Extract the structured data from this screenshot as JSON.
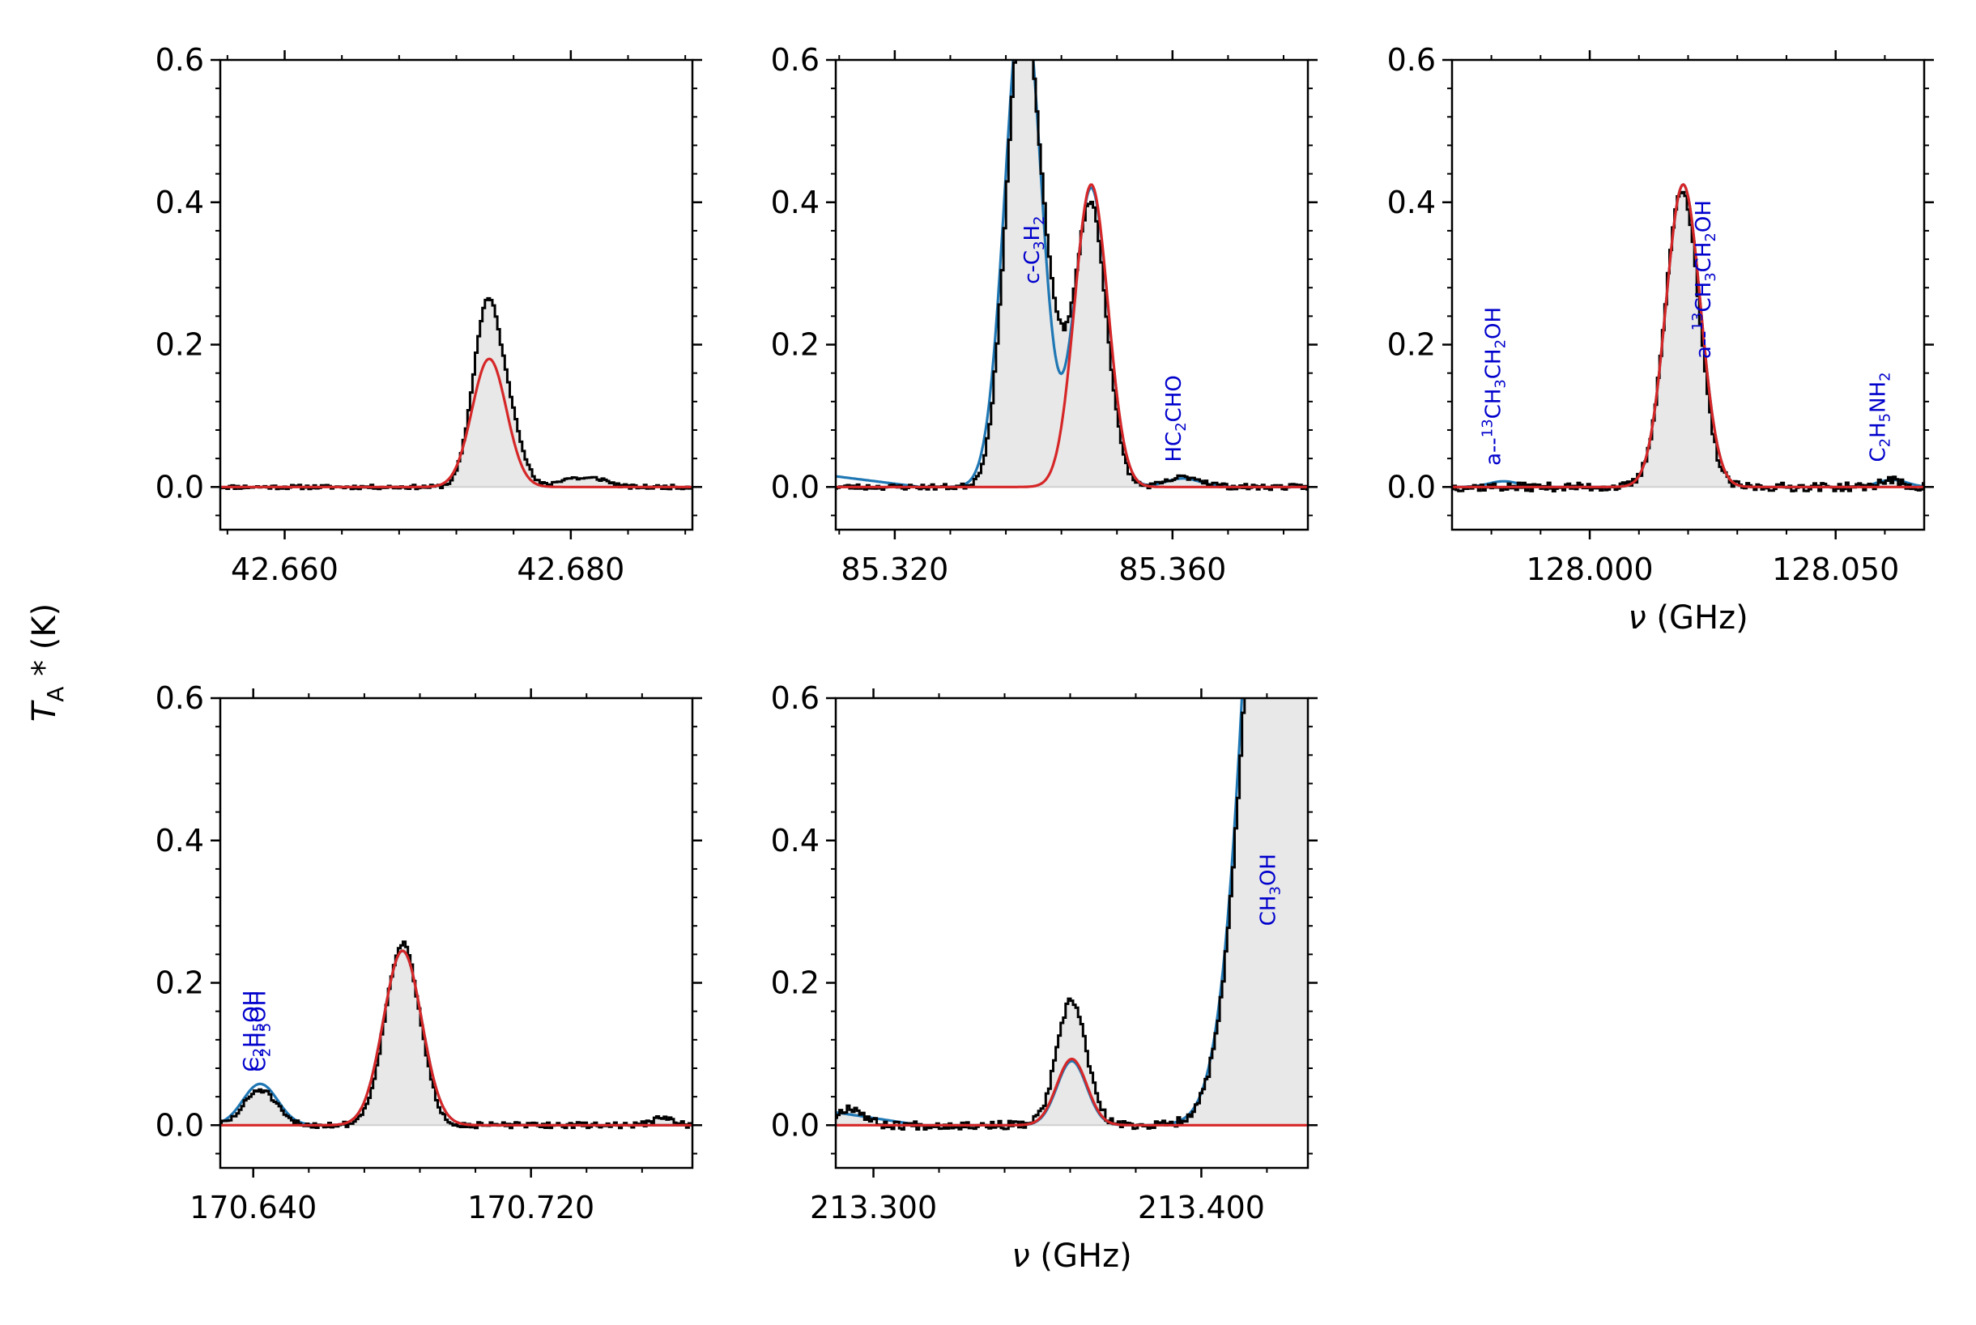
{
  "figure": {
    "ylabel": "T_A * (K)",
    "ylabel_main": "T",
    "ylabel_sub": "A",
    "ylabel_rest": " * (K)",
    "colors": {
      "observed": "#000000",
      "fill": "#e8e8e8",
      "total_model": "#1f77b4",
      "target_model": "#d62728",
      "annotation": "#0000cc"
    }
  },
  "chart_data": [
    {
      "type": "line",
      "panel": "42.67 GHz",
      "xlim": [
        42.6555,
        42.6885
      ],
      "ylim": [
        -0.06,
        0.6
      ],
      "xticks": [
        42.66,
        42.68
      ],
      "xtick_labels": [
        "42.660",
        "42.680"
      ],
      "yticks": [
        0.0,
        0.2,
        0.4,
        0.6
      ],
      "ytick_labels": [
        "0.0",
        "0.2",
        "0.4",
        "0.6"
      ],
      "xlabel": "",
      "observed": {
        "baseline": 0.0,
        "noise": 0.003,
        "seed": 11,
        "components": [
          {
            "center": 42.6742,
            "amp": 0.26,
            "width": 0.001
          },
          {
            "center": 42.676,
            "amp": 0.06,
            "width": 0.0008
          },
          {
            "center": 42.68,
            "amp": 0.012,
            "width": 0.001
          },
          {
            "center": 42.682,
            "amp": 0.01,
            "width": 0.0008
          }
        ]
      },
      "total_model": null,
      "target_model": {
        "components": [
          {
            "center": 42.6743,
            "amp": 0.18,
            "width": 0.0012
          }
        ]
      },
      "labels": []
    },
    {
      "type": "line",
      "panel": "85.34 GHz",
      "xlim": [
        85.3115,
        85.3795
      ],
      "ylim": [
        -0.06,
        0.6
      ],
      "xticks": [
        85.32,
        85.36
      ],
      "xtick_labels": [
        "85.320",
        "85.360"
      ],
      "yticks": [
        0.0,
        0.2,
        0.4,
        0.6
      ],
      "ytick_labels": [
        "0.0",
        "0.2",
        "0.4",
        "0.6"
      ],
      "xlabel": "",
      "observed": {
        "baseline": 0.0,
        "noise": 0.004,
        "seed": 23,
        "components": [
          {
            "center": 85.3385,
            "amp": 0.68,
            "width": 0.0024
          },
          {
            "center": 85.343,
            "amp": 0.12,
            "width": 0.0018
          },
          {
            "center": 85.3482,
            "amp": 0.4,
            "width": 0.0023
          },
          {
            "center": 85.362,
            "amp": 0.014,
            "width": 0.0025
          }
        ]
      },
      "total_model": {
        "baseline_left": 0.015,
        "components": [
          {
            "center": 85.3385,
            "amp": 0.7,
            "width": 0.0026
          },
          {
            "center": 85.3483,
            "amp": 0.42,
            "width": 0.0024
          },
          {
            "center": 85.3615,
            "amp": 0.012,
            "width": 0.0025
          }
        ]
      },
      "target_model": {
        "components": [
          {
            "center": 85.3483,
            "amp": 0.425,
            "width": 0.0024
          }
        ]
      },
      "labels": [
        {
          "text": "c-C3H2",
          "main": "c-C",
          "sub1": "3",
          "mid": "H",
          "sub2": "2",
          "x": 85.3408,
          "y": 0.285
        },
        {
          "text": "HC2CHO",
          "main": "HC",
          "sub1": "2",
          "mid": "CHO",
          "sub2": "",
          "x": 85.3612,
          "y": 0.035
        }
      ]
    },
    {
      "type": "line",
      "panel": "128.02 GHz",
      "xlim": [
        127.972,
        128.068
      ],
      "ylim": [
        -0.06,
        0.6
      ],
      "xticks": [
        128.0,
        128.05
      ],
      "xtick_labels": [
        "128.000",
        "128.050"
      ],
      "yticks": [
        0.0,
        0.2,
        0.4,
        0.6
      ],
      "ytick_labels": [
        "0.0",
        "0.2",
        "0.4",
        "0.6"
      ],
      "xlabel": "ν (GHz)",
      "observed": {
        "baseline": 0.0,
        "noise": 0.006,
        "seed": 37,
        "components": [
          {
            "center": 128.0188,
            "amp": 0.42,
            "width": 0.0034
          },
          {
            "center": 128.061,
            "amp": 0.01,
            "width": 0.002
          }
        ]
      },
      "total_model": {
        "baseline_left": 0.0,
        "components": [
          {
            "center": 128.019,
            "amp": 0.425,
            "width": 0.0035
          },
          {
            "center": 127.9825,
            "amp": 0.008,
            "width": 0.003
          },
          {
            "center": 128.0615,
            "amp": 0.01,
            "width": 0.003
          }
        ]
      },
      "target_model": {
        "components": [
          {
            "center": 128.019,
            "amp": 0.425,
            "width": 0.0035
          }
        ]
      },
      "labels": [
        {
          "text": "a--13CH3CH2OH",
          "main": "a--",
          "sup": "13",
          "parts": [
            "CH",
            "3",
            "CH",
            "2",
            "OH"
          ],
          "x": 127.9818,
          "y": 0.03
        },
        {
          "text": "a--13CH3CH2OH",
          "main": "a--",
          "sup": "13",
          "parts": [
            "CH",
            "3",
            "CH",
            "2",
            "OH"
          ],
          "x": 128.0245,
          "y": 0.18
        },
        {
          "text": "C2H5NH2",
          "main": "C",
          "sub1": "2",
          "mid": "H",
          "sub2": "5",
          "tail": "NH",
          "sub3": "2",
          "x": 128.06,
          "y": 0.035
        }
      ]
    },
    {
      "type": "line",
      "panel": "170.68 GHz",
      "xlim": [
        170.6305,
        170.7665
      ],
      "ylim": [
        -0.06,
        0.6
      ],
      "xticks": [
        170.64,
        170.72
      ],
      "xtick_labels": [
        "170.640",
        "170.720"
      ],
      "yticks": [
        0.0,
        0.2,
        0.4,
        0.6
      ],
      "ytick_labels": [
        "0.0",
        "0.2",
        "0.4",
        "0.6"
      ],
      "xlabel": "",
      "observed": {
        "baseline": 0.0,
        "noise": 0.004,
        "seed": 51,
        "components": [
          {
            "center": 170.642,
            "amp": 0.05,
            "width": 0.0045
          },
          {
            "center": 170.683,
            "amp": 0.255,
            "width": 0.005
          },
          {
            "center": 170.758,
            "amp": 0.01,
            "width": 0.003
          }
        ]
      },
      "total_model": {
        "baseline_left": 0.0,
        "components": [
          {
            "center": 170.642,
            "amp": 0.058,
            "width": 0.005
          },
          {
            "center": 170.683,
            "amp": 0.245,
            "width": 0.0055
          }
        ]
      },
      "target_model": {
        "components": [
          {
            "center": 170.683,
            "amp": 0.245,
            "width": 0.0055
          }
        ]
      },
      "labels": [
        {
          "text": "C2H5OH",
          "main": "C",
          "sub1": "2",
          "mid": "H",
          "sub2": "5",
          "tail": "OH",
          "x": 170.6415,
          "y": 0.075
        },
        {
          "text": "C2H5OH",
          "main": "C",
          "sub1": "2",
          "mid": "H",
          "sub2": "5",
          "tail": "OH",
          "x": 170.6435,
          "y": 0.075
        }
      ]
    },
    {
      "type": "line",
      "panel": "213.36 GHz",
      "xlim": [
        213.2885,
        213.4325
      ],
      "ylim": [
        -0.06,
        0.6
      ],
      "xticks": [
        213.3,
        213.4
      ],
      "xtick_labels": [
        "213.300",
        "213.400"
      ],
      "yticks": [
        0.0,
        0.2,
        0.4,
        0.6
      ],
      "ytick_labels": [
        "0.0",
        "0.2",
        "0.4",
        "0.6"
      ],
      "xlabel": "ν (GHz)",
      "observed": {
        "baseline": 0.0,
        "noise": 0.006,
        "seed": 67,
        "components": [
          {
            "center": 213.293,
            "amp": 0.025,
            "width": 0.004
          },
          {
            "center": 213.3605,
            "amp": 0.175,
            "width": 0.0045
          },
          {
            "center": 213.427,
            "amp": 1.6,
            "width": 0.01
          }
        ]
      },
      "total_model": {
        "baseline_left": 0.018,
        "components": [
          {
            "center": 213.3605,
            "amp": 0.09,
            "width": 0.0045
          },
          {
            "center": 213.427,
            "amp": 1.75,
            "width": 0.01
          }
        ]
      },
      "target_model": {
        "components": [
          {
            "center": 213.3605,
            "amp": 0.093,
            "width": 0.0046
          }
        ]
      },
      "labels": [
        {
          "text": "CH3OH",
          "main": "CH",
          "sub1": "3",
          "mid": "OH",
          "sub2": "",
          "x": 213.4225,
          "y": 0.28
        }
      ]
    }
  ]
}
